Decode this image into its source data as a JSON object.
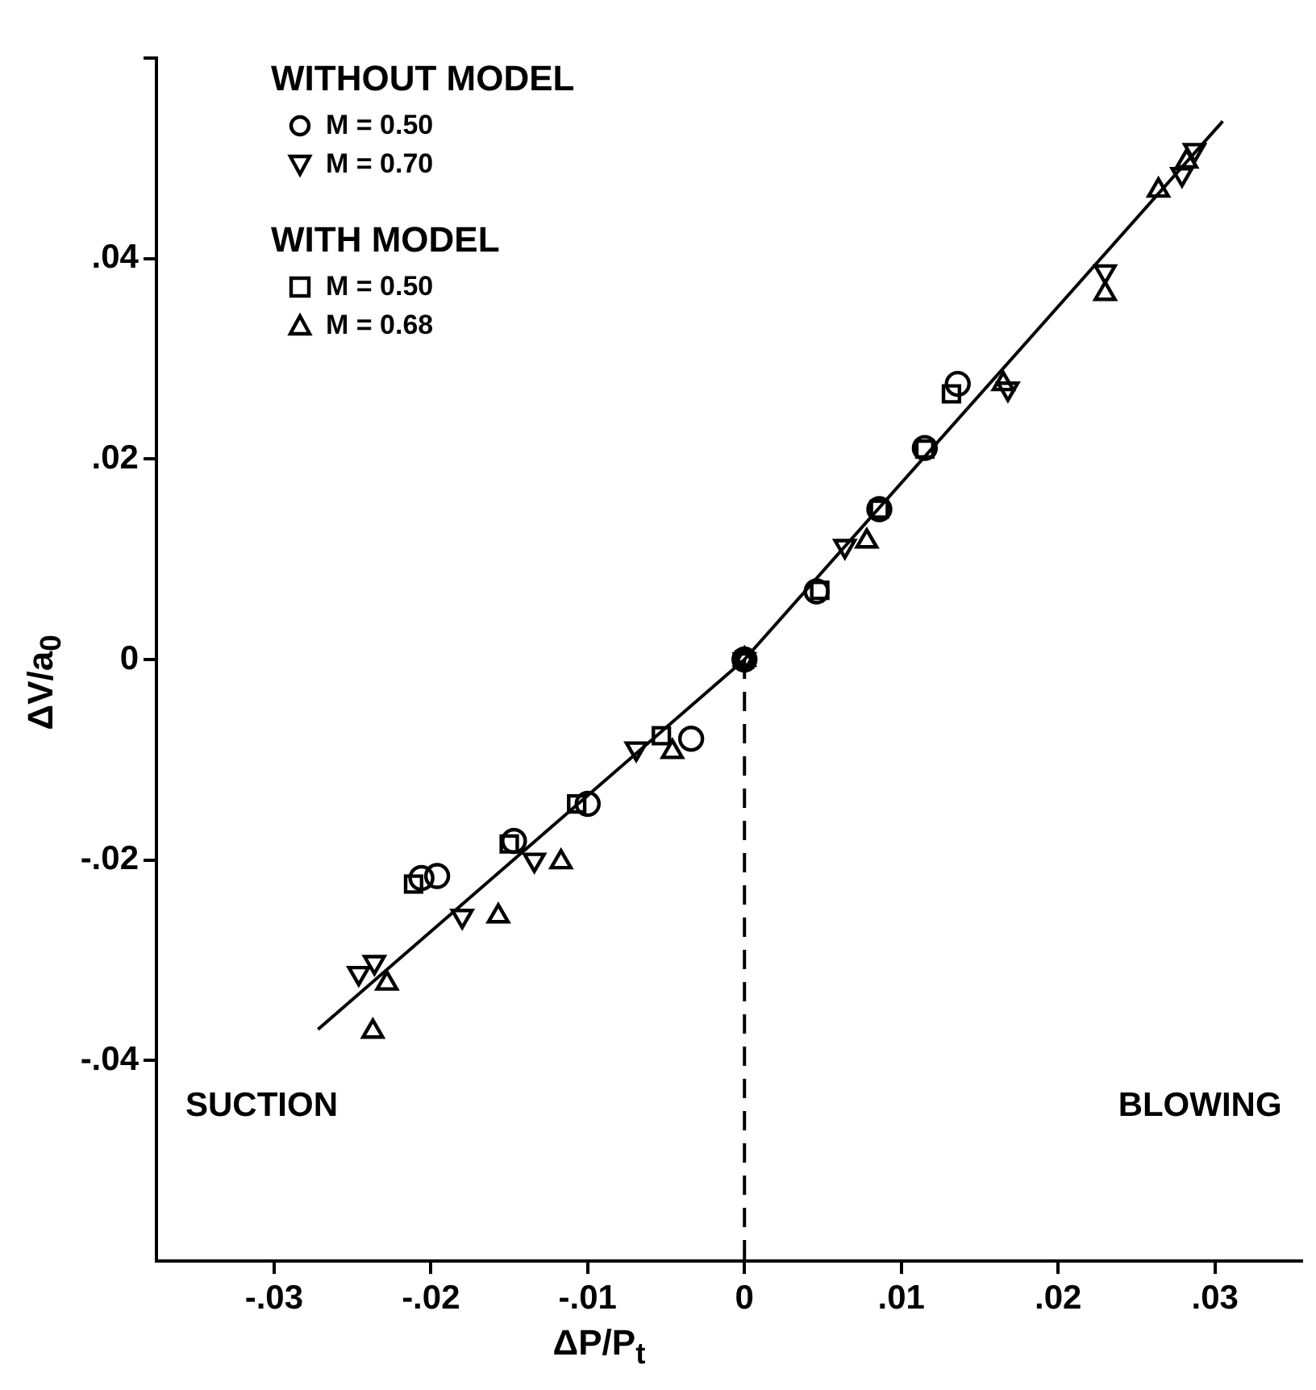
{
  "chart_data": {
    "type": "scatter",
    "xlabel": "ΔP/P$_{t}$",
    "ylabel": "ΔV/a$_{0}$",
    "series": [
      {
        "name": "M = 0.50",
        "color": "#000000",
        "marker": "circle",
        "x": [
          -0.0034,
          -0.01,
          -0.0147,
          -0.0196,
          -0.0206,
          0,
          0.0046,
          0.0086,
          0.0115,
          0.0136
        ],
        "values": [
          -0.0079,
          -0.0144,
          -0.0181,
          -0.0216,
          -0.0218,
          0,
          0.0068,
          0.015,
          0.0211,
          0.0275
        ]
      },
      {
        "name": "M = 0.70",
        "color": "#000000",
        "marker": "triangle",
        "x": [
          -0.0069,
          -0.0134,
          -0.018,
          -0.0236,
          -0.0246,
          0,
          0.0064,
          0.0168,
          0.023,
          0.0279,
          0.0287
        ],
        "values": [
          -0.0089,
          -0.02,
          -0.0256,
          -0.0302,
          -0.0313,
          0,
          0.0113,
          0.027,
          0.0387,
          0.0484,
          0.0508
        ]
      },
      {
        "name": "M = 0.50",
        "color": "#000000",
        "marker": "square",
        "x": [
          -0.0053,
          -0.0107,
          -0.015,
          -0.0211,
          0,
          0.0048,
          0.0086,
          0.0115,
          0.0132
        ],
        "values": [
          -0.0076,
          -0.0144,
          -0.0184,
          -0.0224,
          0,
          0.0069,
          0.015,
          0.021,
          0.0265
        ]
      },
      {
        "name": "M = 0.68",
        "color": "#000000",
        "marker": "triangle",
        "x": [
          -0.0046,
          -0.0117,
          -0.0157,
          -0.0228,
          -0.0237,
          0,
          0.0078,
          0.0165,
          0.023,
          0.0264,
          0.0282
        ],
        "values": [
          -0.0092,
          -0.0202,
          -0.0256,
          -0.0323,
          -0.0371,
          0,
          0.0118,
          0.0275,
          0.0365,
          0.0468,
          0.0497
        ]
      },
      {
        "type": "line",
        "color": "#000000",
        "line_style": "solid",
        "x": [
          -0.0272,
          0,
          0.0305
        ],
        "values": [
          -0.0369,
          0,
          0.0537
        ]
      },
      {
        "type": "line",
        "color": "#000000",
        "line_style": "dashed",
        "x": [
          0,
          0
        ],
        "values": [
          0,
          -0.06
        ]
      }
    ],
    "annotations": [
      "WITHOUT MODEL",
      "WITH MODEL",
      "SUCTION",
      "BLOWING"
    ],
    "xlim": [
      -0.0375,
      0.0355
    ],
    "xticks": [
      {
        "value": -0.03,
        "label": "-.03"
      },
      {
        "value": -0.02,
        "label": "-.02"
      },
      {
        "value": -0.01,
        "label": "-.01"
      },
      0,
      {
        "value": 0.01,
        "label": ".01"
      },
      {
        "value": 0.02,
        "label": ".02"
      },
      {
        "value": 0.03,
        "label": ".03"
      }
    ],
    "ylim": [
      -0.06,
      0.06
    ],
    "yticks": [
      {
        "value": -0.04,
        "label": "-.04"
      },
      {
        "value": -0.02,
        "label": "-.02"
      },
      0,
      {
        "value": 0.02,
        "label": ".02"
      },
      {
        "value": 0.04,
        "label": ".04"
      },
      {
        "value": 0.06,
        "label": null
      }
    ],
    "grid": false,
    "legend": "top left"
  }
}
